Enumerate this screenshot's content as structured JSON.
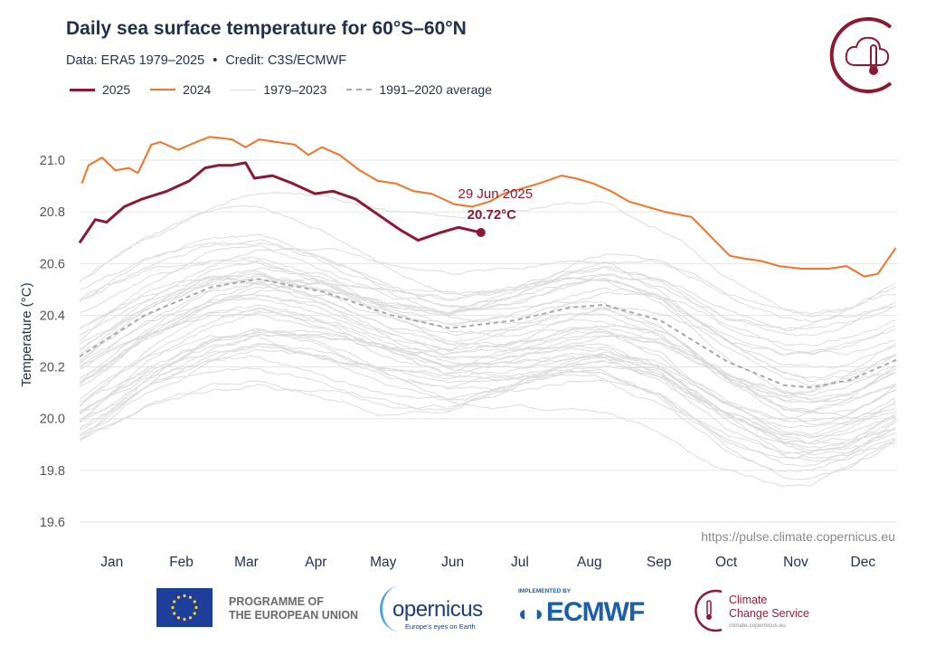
{
  "header": {
    "title": "Daily sea surface temperature for 60°S–60°N",
    "subtitle_data": "Data: ERA5 1979–2025",
    "subtitle_sep": "•",
    "subtitle_credit": "Credit: C3S/ECMWF"
  },
  "colors": {
    "y2025": "#8b1a30",
    "y2024": "#f07428",
    "history": "#dcdcdc",
    "average": "#a8a8a8",
    "text": "#1f2f4e",
    "grid": "#e6e6e6"
  },
  "chart_data": {
    "type": "line",
    "title": "Daily sea surface temperature for 60°S–60°N",
    "xlabel": "",
    "ylabel": "Temperature (°C)",
    "ylim": [
      19.6,
      21.1
    ],
    "xlim_day_of_year": [
      1,
      366
    ],
    "yticks": [
      "19.6",
      "19.8",
      "20.0",
      "20.2",
      "20.4",
      "20.6",
      "20.8",
      "21.0"
    ],
    "ytick_values": [
      19.6,
      19.8,
      20.0,
      20.2,
      20.4,
      20.6,
      20.8,
      21.0
    ],
    "xticks": [
      "Jan",
      "Feb",
      "Mar",
      "Apr",
      "May",
      "Jun",
      "Jul",
      "Aug",
      "Sep",
      "Oct",
      "Nov",
      "Dec"
    ],
    "xtick_days": [
      15,
      46,
      75,
      106,
      136,
      167,
      197,
      228,
      259,
      289,
      320,
      350
    ],
    "grid": true,
    "legend": {
      "placement": "top-left",
      "entries": [
        "2025",
        "2024",
        "1979–2023",
        "1991–2020 average"
      ]
    },
    "series": [
      {
        "name": "2025",
        "day": [
          1,
          8,
          13,
          21,
          29,
          40,
          50,
          57,
          63,
          69,
          75,
          79,
          87,
          96,
          106,
          114,
          124,
          134,
          144,
          152,
          162,
          170,
          180
        ],
        "values": [
          20.68,
          20.77,
          20.76,
          20.82,
          20.85,
          20.88,
          20.92,
          20.97,
          20.98,
          20.98,
          20.99,
          20.93,
          20.94,
          20.91,
          20.87,
          20.88,
          20.85,
          20.79,
          20.73,
          20.69,
          20.72,
          20.74,
          20.72
        ]
      },
      {
        "name": "2024",
        "day": [
          2,
          5,
          11,
          17,
          23,
          27,
          33,
          37,
          45,
          53,
          59,
          69,
          75,
          81,
          89,
          97,
          103,
          109,
          117,
          126,
          134,
          142,
          150,
          158,
          168,
          176,
          184,
          190,
          198,
          206,
          216,
          222,
          230,
          238,
          246,
          254,
          262,
          274,
          283,
          291,
          297,
          305,
          313,
          323,
          335,
          343,
          351,
          357,
          361,
          365
        ],
        "values": [
          20.91,
          20.98,
          21.01,
          20.96,
          20.97,
          20.95,
          21.06,
          21.07,
          21.04,
          21.07,
          21.09,
          21.08,
          21.05,
          21.08,
          21.07,
          21.06,
          21.02,
          21.05,
          21.02,
          20.96,
          20.92,
          20.91,
          20.88,
          20.87,
          20.83,
          20.82,
          20.84,
          20.87,
          20.89,
          20.91,
          20.94,
          20.93,
          20.91,
          20.88,
          20.84,
          20.82,
          20.8,
          20.78,
          20.7,
          20.63,
          20.62,
          20.61,
          20.59,
          20.58,
          20.58,
          20.59,
          20.55,
          20.56,
          20.61,
          20.66
        ]
      },
      {
        "name": "1991–2020 average",
        "day": [
          1,
          30,
          60,
          81,
          110,
          140,
          166,
          195,
          220,
          235,
          260,
          290,
          315,
          327,
          345,
          366
        ],
        "values": [
          20.24,
          20.4,
          20.51,
          20.54,
          20.49,
          20.4,
          20.35,
          20.38,
          20.43,
          20.44,
          20.38,
          20.22,
          20.13,
          20.12,
          20.15,
          20.23
        ]
      },
      {
        "name": "1979–2023",
        "year_offsets_from_average": [
          -0.32,
          -0.3,
          -0.28,
          -0.3,
          -0.26,
          -0.24,
          -0.27,
          -0.25,
          -0.22,
          -0.23,
          -0.2,
          -0.24,
          -0.18,
          -0.21,
          -0.17,
          -0.15,
          -0.18,
          -0.12,
          -0.14,
          -0.1,
          -0.12,
          -0.08,
          -0.1,
          -0.06,
          -0.07,
          -0.04,
          -0.05,
          -0.02,
          0.0,
          0.02,
          -0.01,
          0.04,
          0.03,
          0.06,
          0.05,
          0.08,
          0.1,
          0.07,
          0.12,
          0.15,
          0.13,
          0.18,
          0.16,
          0.22,
          0.36
        ]
      }
    ],
    "annotation": {
      "date": "29 Jun 2025",
      "value": "20.72°C",
      "day": 180,
      "temp": 20.72
    },
    "source_url": "https://pulse.climate.copernicus.eu"
  },
  "footer": {
    "eu_line1": "PROGRAMME OF",
    "eu_line2": "THE EUROPEAN UNION",
    "copernicus": "opernicus",
    "copernicus_tag": "Europe's eyes on Earth",
    "ecmwf_implemented": "IMPLEMENTED BY",
    "ecmwf": "ECMWF",
    "c3s_line1": "Climate",
    "c3s_line2": "Change Service",
    "c3s_url": "climate.copernicus.eu"
  }
}
